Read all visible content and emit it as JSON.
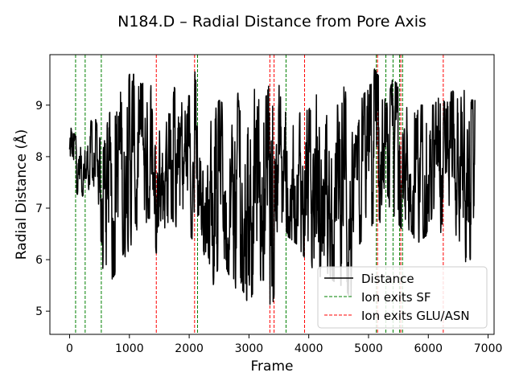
{
  "chart_data": {
    "type": "line",
    "title": "N184.D – Radial Distance from Pore Axis",
    "xlabel": "Frame",
    "ylabel": "Radial Distance (Å)",
    "xlim": [
      -330,
      7100
    ],
    "ylim": [
      4.55,
      9.98
    ],
    "xticks": [
      0,
      1000,
      2000,
      3000,
      4000,
      5000,
      6000,
      7000
    ],
    "yticks": [
      5,
      6,
      7,
      8,
      9
    ],
    "grid": false,
    "legend": {
      "placement": "lower-right",
      "entries": [
        {
          "label": "Distance",
          "color": "#000000",
          "style": "solid"
        },
        {
          "label": "Ion exits SF",
          "color": "#008000",
          "style": "dashed"
        },
        {
          "label": "Ion exits GLU/ASN",
          "color": "#ff0000",
          "style": "dashed"
        }
      ]
    },
    "series": [
      {
        "name": "Distance",
        "color": "#000000",
        "frame_range": [
          0,
          6780
        ],
        "envelope": {
          "frames": [
            0,
            100,
            200,
            300,
            400,
            500,
            550,
            600,
            700,
            800,
            900,
            1000,
            1100,
            1200,
            1300,
            1400,
            1450,
            1500,
            1600,
            1700,
            1800,
            1900,
            2000,
            2050,
            2100,
            2150,
            2200,
            2300,
            2400,
            2500,
            2600,
            2700,
            2800,
            2900,
            3000,
            3100,
            3200,
            3300,
            3350,
            3400,
            3450,
            3500,
            3600,
            3700,
            3800,
            3900,
            4000,
            4100,
            4200,
            4300,
            4400,
            4500,
            4600,
            4700,
            4800,
            4900,
            5000,
            5100,
            5200,
            5300,
            5400,
            5500,
            5600,
            5700,
            5800,
            5900,
            6000,
            6100,
            6200,
            6300,
            6400,
            6500,
            6600,
            6650,
            6700,
            6780
          ],
          "max": [
            8.6,
            8.4,
            8.3,
            8.4,
            8.9,
            8.4,
            8.0,
            8.5,
            9.0,
            9.2,
            9.3,
            9.6,
            9.6,
            9.4,
            9.5,
            9.3,
            9.7,
            9.2,
            9.1,
            9.5,
            9.2,
            9.0,
            9.2,
            9.0,
            9.7,
            8.8,
            8.4,
            8.6,
            8.8,
            9.1,
            9.0,
            8.5,
            9.2,
            9.4,
            9.4,
            9.3,
            9.0,
            9.2,
            9.5,
            9.0,
            9.6,
            9.4,
            9.0,
            8.8,
            8.8,
            8.9,
            8.9,
            9.2,
            9.2,
            8.8,
            9.0,
            9.0,
            9.4,
            8.5,
            8.4,
            9.2,
            9.3,
            9.7,
            9.5,
            9.0,
            9.5,
            9.4,
            9.0,
            8.9,
            9.0,
            9.0,
            9.0,
            9.0,
            9.2,
            9.0,
            9.3,
            9.1,
            9.4,
            8.5,
            9.1,
            9.1
          ],
          "min": [
            7.4,
            7.3,
            7.2,
            7.4,
            7.2,
            6.5,
            5.3,
            5.6,
            5.6,
            5.8,
            6.0,
            6.2,
            6.5,
            6.3,
            6.8,
            6.8,
            6.1,
            6.8,
            6.6,
            6.8,
            6.6,
            6.4,
            6.5,
            6.4,
            6.1,
            6.0,
            6.0,
            6.2,
            5.5,
            5.9,
            5.9,
            5.6,
            5.4,
            5.4,
            5.1,
            5.5,
            5.6,
            5.6,
            4.8,
            5.0,
            5.8,
            6.3,
            6.5,
            6.4,
            6.3,
            6.1,
            5.9,
            5.8,
            5.6,
            5.7,
            5.6,
            5.5,
            5.5,
            5.2,
            6.2,
            6.4,
            6.5,
            6.2,
            6.6,
            7.0,
            6.9,
            6.7,
            6.5,
            6.6,
            6.3,
            6.4,
            6.5,
            6.6,
            6.5,
            6.5,
            6.5,
            6.4,
            6.2,
            5.7,
            6.0,
            6.3
          ]
        }
      }
    ],
    "events": {
      "ion_exits_sf": [
        100,
        260,
        530,
        2140,
        3620,
        5130,
        5290,
        5410,
        5520,
        5570
      ],
      "ion_exits_glu_asn": [
        1450,
        2090,
        3350,
        3420,
        3930,
        5150,
        5540,
        6250
      ]
    }
  }
}
